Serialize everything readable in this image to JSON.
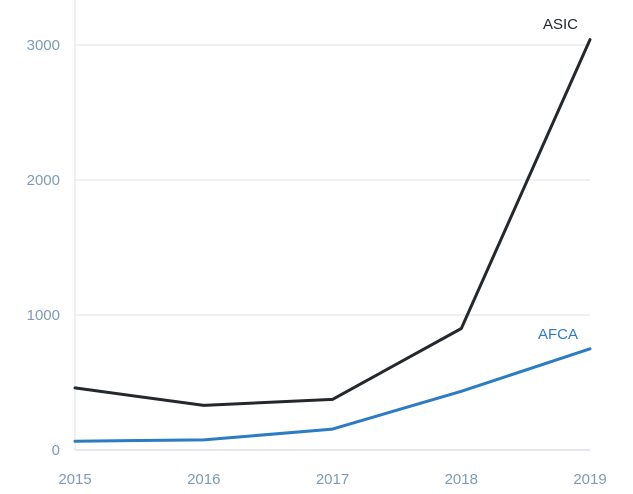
{
  "chart_data": {
    "type": "line",
    "title": "",
    "xlabel": "",
    "ylabel": "",
    "x": [
      "2015",
      "2016",
      "2017",
      "2018",
      "2019"
    ],
    "ylim": [
      0,
      3300
    ],
    "y_ticks": [
      "0",
      "1000",
      "2000",
      "3000"
    ],
    "grid": true,
    "legend": "direct labels at line ends",
    "series": [
      {
        "name": "ASIC",
        "color": "#23282d",
        "values": [
          460,
          330,
          375,
          900,
          3040
        ]
      },
      {
        "name": "AFCA",
        "color": "#2b7cc4",
        "values": [
          65,
          75,
          155,
          435,
          750
        ]
      }
    ]
  }
}
